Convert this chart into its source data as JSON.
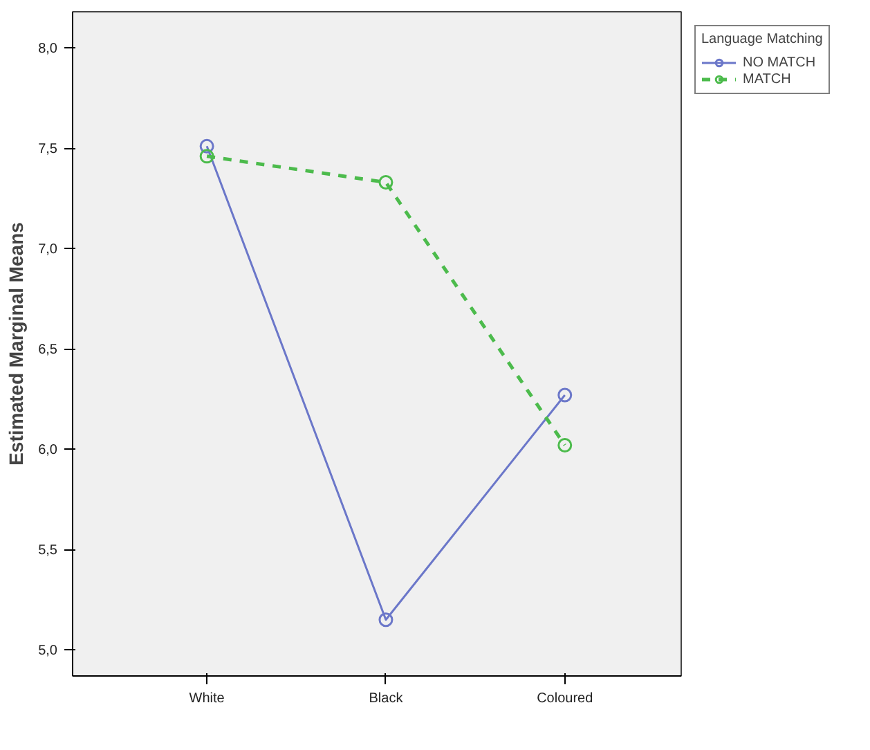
{
  "chart_data": {
    "type": "line",
    "ylabel": "Estimated Marginal Means",
    "legend_title": "Language Matching",
    "categories": [
      "White",
      "Black",
      "Coloured"
    ],
    "series": [
      {
        "name": "NO MATCH",
        "color": "#6b77c9",
        "values": [
          7.51,
          5.15,
          6.27
        ],
        "line_style": "solid"
      },
      {
        "name": "MATCH",
        "color": "#4cbb4c",
        "values": [
          7.46,
          7.33,
          6.02
        ],
        "line_style": "dashed"
      }
    ],
    "ylim": [
      4.87,
      8.18
    ],
    "yticks": [
      {
        "value": 5.0,
        "label": "5,0"
      },
      {
        "value": 5.5,
        "label": "5,5"
      },
      {
        "value": 6.0,
        "label": "6,0"
      },
      {
        "value": 6.5,
        "label": "6,5"
      },
      {
        "value": 7.0,
        "label": "7,0"
      },
      {
        "value": 7.5,
        "label": "7,5"
      },
      {
        "value": 8.0,
        "label": "8,0"
      }
    ],
    "marker": "circle",
    "grid": false,
    "legend": "top right"
  }
}
